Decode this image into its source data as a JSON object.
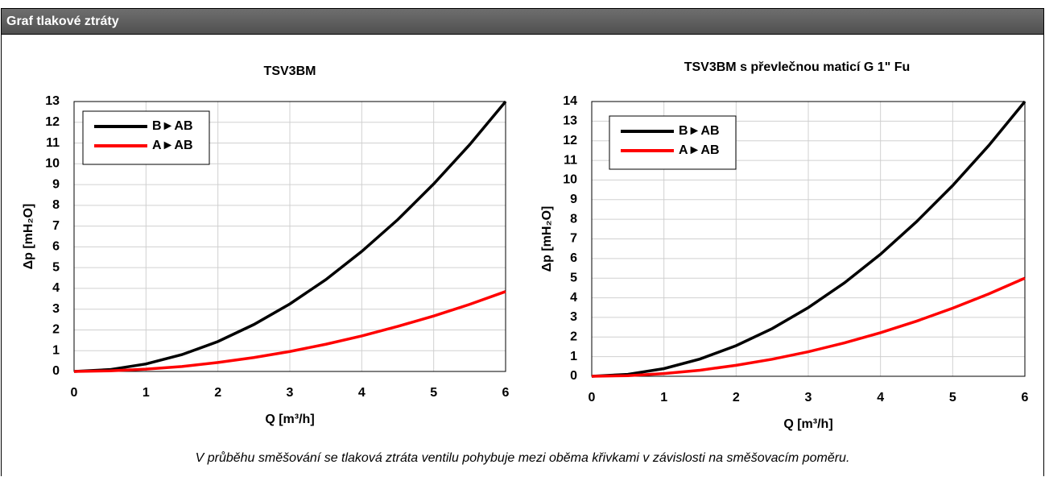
{
  "header": {
    "title": "Graf tlakové ztráty"
  },
  "chart_data": [
    {
      "type": "line",
      "title": "TSV3BM",
      "xlabel": "Q [m³/h]",
      "ylabel": "Δp [mH₂O]",
      "x": [
        0,
        0.5,
        1,
        1.5,
        2,
        2.5,
        3,
        3.5,
        4,
        4.5,
        5,
        5.5,
        6
      ],
      "series": [
        {
          "name": "B►AB",
          "color": "#000000",
          "values": [
            0,
            0.09,
            0.36,
            0.81,
            1.44,
            2.26,
            3.25,
            4.42,
            5.78,
            7.31,
            9.03,
            10.92,
            13
          ]
        },
        {
          "name": "A►AB",
          "color": "#ff0000",
          "values": [
            0,
            0.03,
            0.11,
            0.24,
            0.43,
            0.67,
            0.96,
            1.31,
            1.71,
            2.17,
            2.67,
            3.23,
            3.85
          ]
        }
      ],
      "xlim": [
        0,
        6
      ],
      "xticks": [
        0,
        1,
        2,
        3,
        4,
        5,
        6
      ],
      "ylim": [
        0,
        13
      ],
      "yticks": [
        0,
        1,
        2,
        3,
        4,
        5,
        6,
        7,
        8,
        9,
        10,
        11,
        12,
        13
      ],
      "grid": true,
      "legend": "upper left"
    },
    {
      "type": "line",
      "title": "TSV3BM s převlečnou maticí G 1\" Fu",
      "xlabel": "Q [m³/h]",
      "ylabel": "Δp [mH₂O]",
      "x": [
        0,
        0.5,
        1,
        1.5,
        2,
        2.5,
        3,
        3.5,
        4,
        4.5,
        5,
        5.5,
        6
      ],
      "series": [
        {
          "name": "B►AB",
          "color": "#000000",
          "values": [
            0,
            0.1,
            0.39,
            0.88,
            1.56,
            2.43,
            3.5,
            4.76,
            6.22,
            7.88,
            9.72,
            11.76,
            14
          ]
        },
        {
          "name": "A►AB",
          "color": "#ff0000",
          "values": [
            0,
            0.03,
            0.14,
            0.31,
            0.56,
            0.87,
            1.25,
            1.7,
            2.22,
            2.81,
            3.47,
            4.2,
            5
          ]
        }
      ],
      "xlim": [
        0,
        6
      ],
      "xticks": [
        0,
        1,
        2,
        3,
        4,
        5,
        6
      ],
      "ylim": [
        0,
        14
      ],
      "yticks": [
        0,
        1,
        2,
        3,
        4,
        5,
        6,
        7,
        8,
        9,
        10,
        11,
        12,
        13,
        14
      ],
      "grid": true,
      "legend": "upper left"
    }
  ],
  "caption": "V průběhu směšování se tlaková ztráta ventilu pohybuje mezi oběma křivkami v závislosti na směšovacím poměru."
}
